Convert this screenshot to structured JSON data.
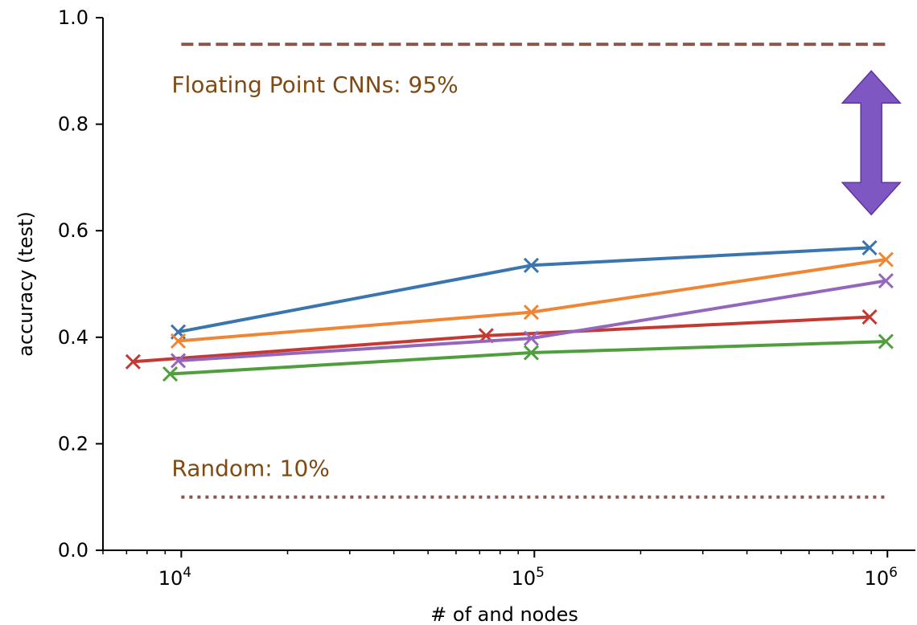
{
  "chart_data": {
    "type": "line",
    "xscale": "log",
    "xlabel": "# of and nodes",
    "ylabel": "accuracy (test)",
    "xlim": [
      6000,
      1200000
    ],
    "ylim": [
      0.0,
      1.0
    ],
    "x_ticks": [
      10000,
      100000,
      1000000
    ],
    "x_tick_labels": [
      {
        "base": "10",
        "exp": "4"
      },
      {
        "base": "10",
        "exp": "5"
      },
      {
        "base": "10",
        "exp": "6"
      }
    ],
    "y_ticks": [
      0.0,
      0.2,
      0.4,
      0.6,
      0.8,
      1.0
    ],
    "y_tick_labels": [
      "0.0",
      "0.2",
      "0.4",
      "0.6",
      "0.8",
      "1.0"
    ],
    "grid": false,
    "series": [
      {
        "color": "#3a75ae",
        "x": [
          9800,
          98000,
          890000
        ],
        "y": [
          0.41,
          0.535,
          0.568
        ]
      },
      {
        "color": "#ef8636",
        "x": [
          9800,
          98000,
          990000
        ],
        "y": [
          0.393,
          0.447,
          0.546
        ]
      },
      {
        "color": "#c53932",
        "x": [
          7300,
          73000,
          890000
        ],
        "y": [
          0.354,
          0.403,
          0.438
        ]
      },
      {
        "color": "#9467bd",
        "x": [
          9800,
          98000,
          990000
        ],
        "y": [
          0.356,
          0.398,
          0.506
        ]
      },
      {
        "color": "#519e3e",
        "x": [
          9300,
          98000,
          990000
        ],
        "y": [
          0.331,
          0.371,
          0.392
        ]
      }
    ],
    "reference_lines": [
      {
        "label": "Floating Point CNNs: 95%",
        "y": 0.95,
        "x_range": [
          10000,
          1000000
        ],
        "style": "dashed",
        "color": "#8c564b",
        "label_color": "#7f4a14"
      },
      {
        "label": "Random: 10%",
        "y": 0.1,
        "x_range": [
          10000,
          1000000
        ],
        "style": "dotted",
        "color": "#8c564b",
        "label_color": "#7f4a14"
      }
    ],
    "arrow": {
      "x": 900000,
      "y_range": [
        0.63,
        0.9
      ],
      "color": "#7e57c2"
    }
  }
}
